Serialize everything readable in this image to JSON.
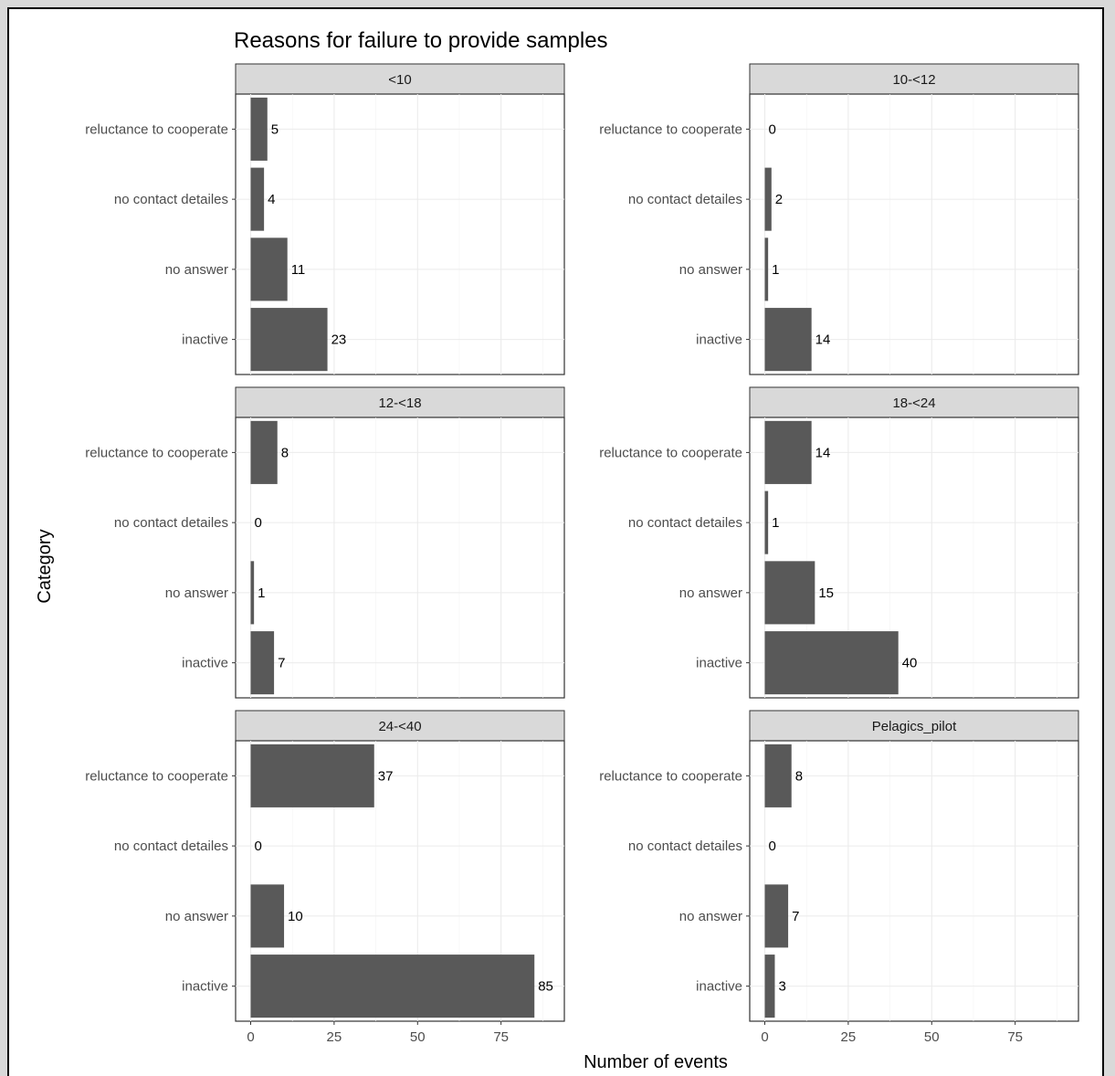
{
  "chart_data": {
    "type": "bar",
    "orientation": "horizontal",
    "title": "Reasons for failure to provide samples",
    "xlabel": "Number of events",
    "ylabel": "Category",
    "xlim": [
      0,
      90
    ],
    "x_ticks": [
      0,
      25,
      50,
      75
    ],
    "categories": [
      "reluctance to cooperate",
      "no contact detailes",
      "no answer",
      "inactive"
    ],
    "bar_color": "#595959",
    "strip_color": "#d9d9d9",
    "grid": true,
    "facets": [
      {
        "name": "<10",
        "values": [
          5,
          4,
          11,
          23
        ]
      },
      {
        "name": "10-<12",
        "values": [
          0,
          2,
          1,
          14
        ]
      },
      {
        "name": "12-<18",
        "values": [
          8,
          0,
          1,
          7
        ]
      },
      {
        "name": "18-<24",
        "values": [
          14,
          1,
          15,
          40
        ]
      },
      {
        "name": "24-<40",
        "values": [
          37,
          0,
          10,
          85
        ]
      },
      {
        "name": "Pelagics_pilot",
        "values": [
          8,
          0,
          7,
          3
        ]
      }
    ]
  }
}
